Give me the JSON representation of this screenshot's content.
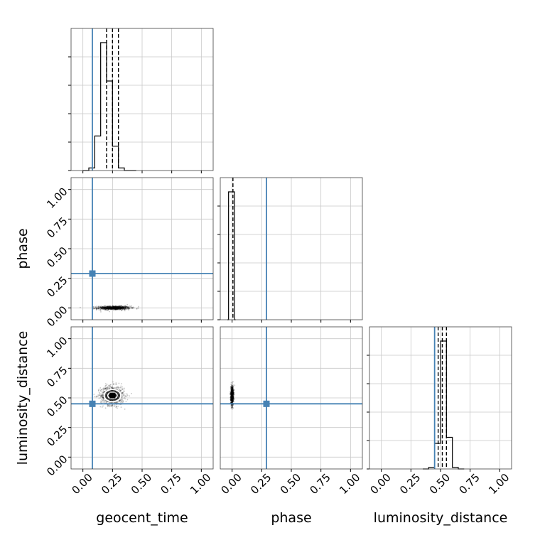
{
  "chart_data": {
    "type": "corner",
    "parameters": [
      "geocent_time",
      "phase",
      "luminosity_distance"
    ],
    "axis_labels": [
      "geocent_time",
      "phase",
      "luminosity_distance"
    ],
    "range": [
      -0.1,
      1.1
    ],
    "ticks": [
      0.0,
      0.25,
      0.5,
      0.75,
      1.0
    ],
    "tick_labels": [
      "0.00",
      "0.25",
      "0.50",
      "0.75",
      "1.00"
    ],
    "grid": true,
    "colors": {
      "truth": "#4682b4",
      "line": "#000000",
      "grid": "#c8c8c8"
    },
    "truths": {
      "geocent_time": 0.08,
      "phase": 0.29,
      "luminosity_distance": 0.45
    },
    "quantiles": {
      "geocent_time": [
        0.2,
        0.25,
        0.3
      ],
      "phase": [
        0.007
      ],
      "luminosity_distance": [
        0.48,
        0.515,
        0.55
      ]
    },
    "histograms": {
      "geocent_time": {
        "bin_edges": [
          0.0,
          0.05,
          0.1,
          0.15,
          0.2,
          0.25,
          0.3,
          0.35,
          0.4,
          0.45
        ],
        "counts": [
          0.0,
          0.02,
          0.27,
          1.0,
          0.7,
          0.19,
          0.02,
          0.0,
          0.0
        ]
      },
      "phase": {
        "bin_edges": [
          -0.04,
          -0.03,
          -0.02,
          -0.01,
          0.0,
          0.01,
          0.02,
          0.03
        ],
        "counts": [
          0.0,
          1.0,
          1.0,
          1.0,
          1.0,
          1.0,
          0.0
        ]
      },
      "luminosity_distance": {
        "bin_edges": [
          0.35,
          0.4,
          0.45,
          0.5,
          0.55,
          0.6,
          0.65,
          0.7
        ],
        "counts": [
          0.0,
          0.01,
          0.17,
          0.85,
          0.21,
          0.01,
          0.0
        ]
      }
    },
    "samples_2d": {
      "phase_vs_geocent_time": {
        "x": "geocent_time",
        "y": "phase",
        "mean": [
          0.26,
          0.0
        ],
        "spread": [
          0.07,
          0.008
        ]
      },
      "luminosity_distance_vs_geocent_time": {
        "x": "geocent_time",
        "y": "luminosity_distance",
        "mean": [
          0.25,
          0.52
        ],
        "spread": [
          0.05,
          0.04
        ]
      },
      "luminosity_distance_vs_phase": {
        "x": "phase",
        "y": "luminosity_distance",
        "mean": [
          0.0,
          0.52
        ],
        "spread": [
          0.006,
          0.04
        ]
      }
    }
  }
}
